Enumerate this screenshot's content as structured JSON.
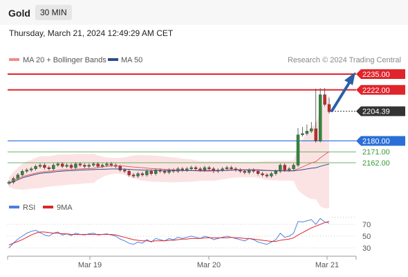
{
  "header": {
    "instrument": "Gold",
    "timeframe": "30 MIN",
    "datetime": "Thursday, March 21, 2024 12:49:29 AM CET"
  },
  "legend": {
    "ma20": "MA 20 + Bollinger Bands",
    "ma50": "MA 50",
    "credit": "Research © 2024 Trading Central"
  },
  "colors": {
    "red": "#e0242b",
    "blue": "#2a6ed8",
    "green": "#3a9a3a",
    "dark": "#333333",
    "arrow": "#2a5fa8",
    "band": "#fbdcdc"
  },
  "chart_data": [
    {
      "type": "line",
      "title": "",
      "ylim": [
        2130,
        2245
      ],
      "x_ticks": [
        "Mar 19",
        "Mar 20",
        "Mar 21"
      ],
      "levels": [
        {
          "value": "2235.00",
          "kind": "resistance"
        },
        {
          "value": "2222.00",
          "kind": "resistance"
        },
        {
          "value": "2204.39",
          "kind": "last"
        },
        {
          "value": "2180.00",
          "kind": "pivot"
        },
        {
          "value": "2171.00",
          "kind": "support"
        },
        {
          "value": "2162.00",
          "kind": "support"
        }
      ],
      "annotation": "upward target arrow toward 2235.00",
      "close_series_approx": [
        2146,
        2149,
        2152,
        2155,
        2156,
        2157,
        2159,
        2160,
        2158,
        2157,
        2160,
        2161,
        2159,
        2160,
        2158,
        2161,
        2160,
        2159,
        2160,
        2161,
        2159,
        2160,
        2161,
        2160,
        2159,
        2156,
        2155,
        2152,
        2151,
        2153,
        2152,
        2155,
        2153,
        2156,
        2155,
        2154,
        2156,
        2155,
        2157,
        2156,
        2157,
        2158,
        2157,
        2156,
        2158,
        2157,
        2155,
        2156,
        2157,
        2158,
        2157,
        2156,
        2155,
        2154,
        2156,
        2155,
        2153,
        2152,
        2151,
        2153,
        2155,
        2160,
        2156,
        2157,
        2160,
        2185,
        2186,
        2188,
        2190,
        2180,
        2218,
        2210,
        2204
      ]
    },
    {
      "type": "line",
      "title": "",
      "series": [
        {
          "name": "RSI"
        },
        {
          "name": "9MA"
        }
      ],
      "ylim": [
        20,
        85
      ],
      "y_ticks": [
        "70",
        "50",
        "30"
      ],
      "rsi_approx": [
        30,
        38,
        45,
        50,
        55,
        58,
        60,
        56,
        52,
        50,
        55,
        57,
        52,
        54,
        51,
        55,
        53,
        52,
        54,
        55,
        52,
        53,
        54,
        52,
        50,
        45,
        42,
        38,
        36,
        40,
        38,
        44,
        40,
        46,
        44,
        42,
        46,
        44,
        48,
        46,
        48,
        50,
        48,
        46,
        50,
        48,
        44,
        46,
        48,
        50,
        48,
        46,
        44,
        42,
        46,
        44,
        40,
        38,
        36,
        40,
        44,
        55,
        48,
        50,
        55,
        75,
        74,
        76,
        78,
        70,
        80,
        74,
        72
      ],
      "ma9_approx": [
        35,
        38,
        41,
        44,
        48,
        52,
        55,
        57,
        57,
        56,
        55,
        55,
        54,
        54,
        53,
        53,
        53,
        53,
        53,
        53,
        53,
        53,
        53,
        53,
        52,
        50,
        48,
        46,
        44,
        43,
        42,
        42,
        41,
        42,
        42,
        42,
        43,
        43,
        44,
        45,
        45,
        46,
        46,
        46,
        47,
        47,
        47,
        47,
        47,
        47,
        48,
        47,
        47,
        46,
        46,
        45,
        44,
        43,
        42,
        41,
        41,
        43,
        44,
        45,
        47,
        52,
        56,
        60,
        64,
        67,
        70,
        73,
        75
      ]
    }
  ]
}
